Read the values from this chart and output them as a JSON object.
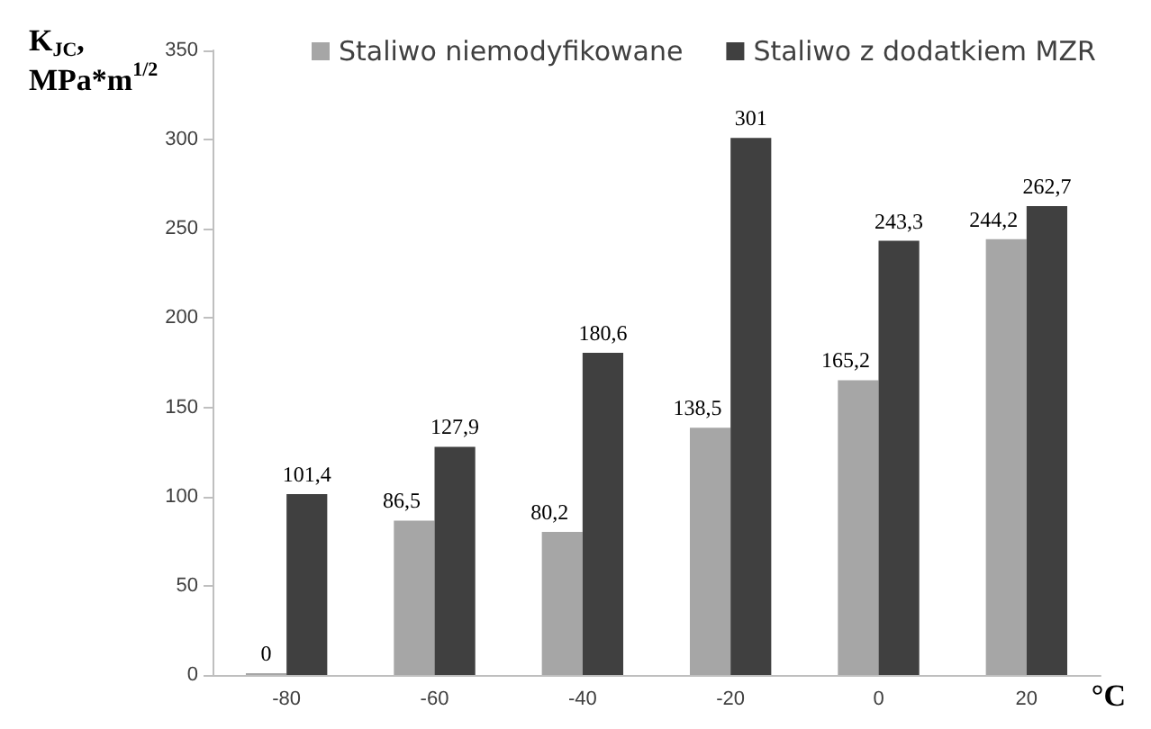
{
  "chart_data": {
    "type": "bar",
    "ylabel": "K$_{JC}$,\nMPa*m$^{1/2}$",
    "xlabel": "°C",
    "categories": [
      "-80",
      "-60",
      "-40",
      "-20",
      "0",
      "20"
    ],
    "series": [
      {
        "name": "Staliwo niemodyfikowane",
        "color": "#a6a6a6",
        "values": [
          0,
          86.5,
          80.2,
          138.5,
          165.2,
          244.2
        ],
        "value_labels": [
          "0",
          "86,5",
          "80,2",
          "138,5",
          "165,2",
          "244,2"
        ]
      },
      {
        "name": "Staliwo z dodatkiem MZR",
        "color": "#404040",
        "values": [
          101.4,
          127.9,
          180.6,
          301,
          243.3,
          262.7
        ],
        "value_labels": [
          "101,4",
          "127,9",
          "180,6",
          "301",
          "243,3",
          "262,7"
        ]
      }
    ],
    "ylim": [
      0,
      350
    ],
    "yticks": [
      0,
      50,
      100,
      150,
      200,
      250,
      300,
      350
    ],
    "grid": false,
    "legend": "top"
  }
}
